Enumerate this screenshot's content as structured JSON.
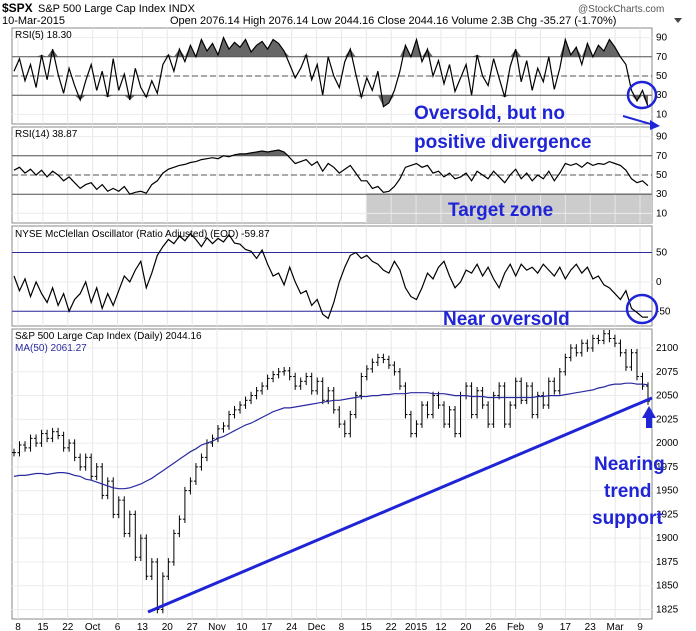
{
  "header": {
    "symbol": "$SPX",
    "name": "S&P 500 Large Cap Index INDX",
    "date": "10-Mar-2015",
    "ohlc": "Open 2076.14  High 2076.14  Low 2044.16  Close 2044.16  Volume 2.3B  Chg -35.27 (-1.70%)",
    "watermark": "@StockCharts.com"
  },
  "colors": {
    "price": "#000000",
    "ma": "#2a2aa0",
    "annotation": "#1f24d6",
    "zone": "#cccccc",
    "rsi_fill": "#666666"
  },
  "chart_data": [
    {
      "type": "line",
      "panel": "rsi5",
      "title": "RSI(5) 18.30",
      "ylim": [
        0,
        100
      ],
      "yticks": [
        10,
        30,
        50,
        70,
        90
      ],
      "reference_lines": [
        30,
        50,
        70
      ],
      "values": [
        55,
        68,
        45,
        62,
        38,
        72,
        46,
        78,
        52,
        32,
        58,
        40,
        25,
        45,
        62,
        35,
        55,
        28,
        68,
        35,
        52,
        25,
        58,
        38,
        28,
        45,
        32,
        62,
        72,
        55,
        78,
        65,
        82,
        70,
        88,
        76,
        84,
        72,
        90,
        78,
        85,
        80,
        88,
        75,
        82,
        86,
        78,
        88,
        84,
        76,
        62,
        48,
        58,
        72,
        46,
        62,
        30,
        70,
        50,
        38,
        65,
        78,
        52,
        28,
        48,
        35,
        55,
        18,
        22,
        35,
        55,
        82,
        70,
        88,
        65,
        78,
        50,
        66,
        42,
        62,
        34,
        48,
        62,
        30,
        72,
        50,
        40,
        68,
        48,
        28,
        60,
        78,
        44,
        66,
        35,
        58,
        44,
        70,
        36,
        58,
        88,
        72,
        80,
        62,
        84,
        70,
        82,
        76,
        88,
        80,
        70,
        62,
        35,
        24,
        35,
        18
      ]
    },
    {
      "type": "line",
      "panel": "rsi14",
      "title": "RSI(14) 38.87",
      "ylim": [
        0,
        100
      ],
      "yticks": [
        10,
        30,
        50,
        70,
        90
      ],
      "reference_lines": [
        30,
        50,
        70
      ],
      "annotations": [
        {
          "text": "Target zone",
          "ymin": 0,
          "ymax": 30
        }
      ],
      "values": [
        55,
        58,
        52,
        56,
        50,
        55,
        48,
        54,
        50,
        44,
        48,
        42,
        36,
        40,
        42,
        35,
        40,
        33,
        36,
        33,
        38,
        30,
        32,
        33,
        31,
        40,
        44,
        52,
        56,
        58,
        60,
        61,
        63,
        64,
        66,
        67,
        68,
        67,
        70,
        69,
        71,
        72,
        72,
        73,
        74,
        75,
        74,
        75,
        76,
        74,
        68,
        62,
        64,
        66,
        60,
        64,
        54,
        62,
        58,
        52,
        56,
        60,
        52,
        44,
        44,
        36,
        38,
        32,
        33,
        38,
        46,
        58,
        60,
        62,
        58,
        60,
        52,
        54,
        48,
        52,
        46,
        48,
        52,
        44,
        54,
        50,
        46,
        54,
        48,
        42,
        50,
        56,
        46,
        52,
        44,
        50,
        46,
        54,
        44,
        52,
        62,
        60,
        62,
        58,
        63,
        60,
        62,
        61,
        64,
        62,
        60,
        55,
        46,
        42,
        44,
        38.87
      ]
    },
    {
      "type": "line",
      "panel": "mcclellan",
      "title": "NYSE McClellan Oscillator (Ratio Adjusted) (EOD) -59.87",
      "ylim": [
        -75,
        95
      ],
      "yticks": [
        -50,
        0,
        50
      ],
      "reference_lines": [
        -50,
        50
      ],
      "annotations": [
        {
          "text": "Near oversold"
        }
      ],
      "values": [
        10,
        -15,
        5,
        -25,
        0,
        -20,
        -35,
        -10,
        -40,
        -20,
        -50,
        -30,
        -20,
        0,
        -35,
        -10,
        -45,
        -20,
        -40,
        -15,
        10,
        0,
        20,
        35,
        -10,
        15,
        45,
        60,
        72,
        65,
        78,
        70,
        82,
        72,
        60,
        75,
        65,
        74,
        68,
        80,
        66,
        64,
        55,
        52,
        40,
        54,
        30,
        10,
        15,
        -5,
        25,
        0,
        -20,
        -15,
        -40,
        -30,
        -55,
        -62,
        -35,
        0,
        25,
        45,
        50,
        40,
        45,
        35,
        30,
        20,
        15,
        35,
        20,
        -10,
        -25,
        -30,
        -10,
        15,
        5,
        25,
        35,
        10,
        -10,
        0,
        20,
        15,
        30,
        10,
        25,
        5,
        -10,
        15,
        30,
        10,
        30,
        20,
        25,
        15,
        30,
        20,
        10,
        25,
        5,
        20,
        30,
        15,
        25,
        5,
        10,
        -5,
        -10,
        -20,
        -30,
        -15,
        -45,
        -52,
        -60,
        -59.87
      ]
    },
    {
      "type": "line",
      "panel": "price",
      "title": "S&P 500 Large Cap Index (Daily) 2044.16",
      "series": [
        {
          "name": "MA(50) 2061.27",
          "values": [
            1965,
            1966,
            1966,
            1967,
            1968,
            1968,
            1967,
            1968,
            1969,
            1969,
            1968,
            1966,
            1965,
            1962,
            1961,
            1959,
            1957,
            1955,
            1953,
            1952,
            1952,
            1953,
            1955,
            1957,
            1960,
            1963,
            1967,
            1971,
            1975,
            1979,
            1983,
            1987,
            1991,
            1994,
            1998,
            2000,
            2002,
            2005,
            2007,
            2010,
            2013,
            2016,
            2019,
            2021,
            2024,
            2027,
            2030,
            2033,
            2035,
            2037,
            2037,
            2038,
            2039,
            2040,
            2041,
            2042,
            2043,
            2044,
            2045,
            2045,
            2046,
            2047,
            2048,
            2049,
            2049,
            2050,
            2050,
            2051,
            2051,
            2052,
            2052,
            2052,
            2053,
            2053,
            2053,
            2053,
            2052,
            2052,
            2052,
            2051,
            2050,
            2050,
            2050,
            2049,
            2049,
            2049,
            2048,
            2048,
            2048,
            2048,
            2048,
            2048,
            2048,
            2048,
            2048,
            2049,
            2049,
            2050,
            2050,
            2050,
            2051,
            2052,
            2053,
            2054,
            2055,
            2056,
            2058,
            2059,
            2061,
            2062,
            2062,
            2063,
            2063,
            2062,
            2062,
            2061.27
          ]
        },
        {
          "name": "Price",
          "values": [
            1990,
            1998,
            1995,
            2005,
            2000,
            2010,
            2005,
            2012,
            2008,
            1995,
            2000,
            1985,
            1975,
            1985,
            1965,
            1975,
            1945,
            1960,
            1925,
            1940,
            1905,
            1925,
            1880,
            1900,
            1860,
            1875,
            1825,
            1860,
            1875,
            1905,
            1920,
            1950,
            1960,
            1975,
            1985,
            2000,
            2005,
            2015,
            2018,
            2030,
            2035,
            2040,
            2045,
            2050,
            2055,
            2060,
            2068,
            2072,
            2075,
            2076,
            2070,
            2060,
            2065,
            2070,
            2055,
            2065,
            2045,
            2055,
            2035,
            2020,
            2010,
            2030,
            2050,
            2070,
            2078,
            2085,
            2090,
            2088,
            2082,
            2075,
            2060,
            2030,
            2010,
            2020,
            2040,
            2030,
            2050,
            2040,
            2020,
            2035,
            2010,
            2050,
            2060,
            2030,
            2055,
            2040,
            2020,
            2050,
            2060,
            2020,
            2040,
            2065,
            2045,
            2060,
            2030,
            2050,
            2040,
            2065,
            2055,
            2075,
            2090,
            2100,
            2095,
            2105,
            2100,
            2110,
            2108,
            2115,
            2110,
            2105,
            2095,
            2080,
            2095,
            2070,
            2060,
            2044.16
          ]
        }
      ],
      "ylim": [
        1815,
        2120
      ],
      "yticks": [
        1825,
        1850,
        1875,
        1900,
        1925,
        1950,
        1975,
        2000,
        2025,
        2050,
        2075,
        2100
      ],
      "annotations": [
        {
          "text": "Nearing trend support"
        }
      ]
    }
  ],
  "x_axis": {
    "labels": [
      "8",
      "15",
      "22",
      "Oct",
      "6",
      "13",
      "20",
      "27",
      "Nov",
      "10",
      "17",
      "24",
      "Dec",
      "8",
      "15",
      "22",
      "2015",
      "12",
      "20",
      "26",
      "Feb",
      "9",
      "17",
      "23",
      "Mar",
      "9"
    ]
  },
  "annotations": {
    "rsi5_line1": "Oversold, but no",
    "rsi5_line2": "positive divergence",
    "target_zone": "Target zone",
    "near_oversold": "Near oversold",
    "trend_line1": "Nearing",
    "trend_line2": "trend",
    "trend_line3": "support"
  }
}
